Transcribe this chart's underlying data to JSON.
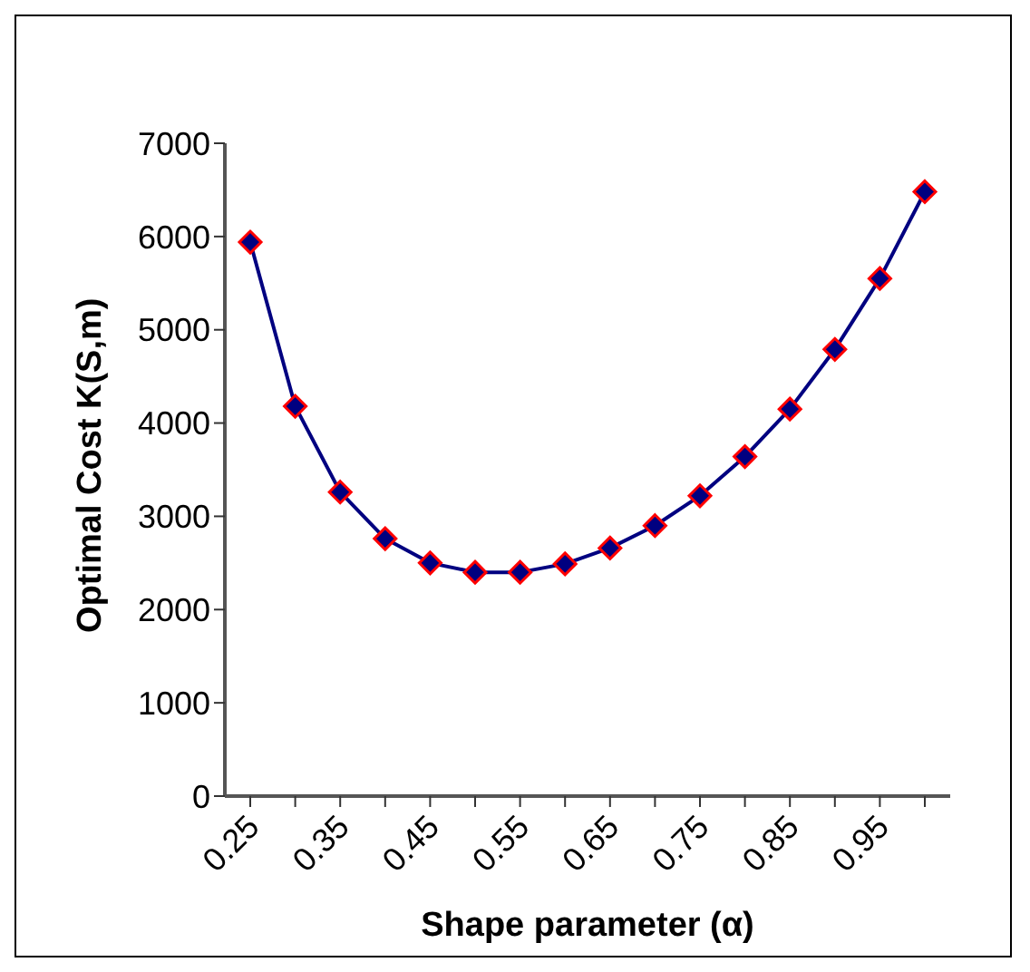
{
  "chart_data": {
    "type": "line",
    "xlabel": "Shape parameter (α)",
    "ylabel": "Optimal Cost K(S,m)",
    "categories": [
      "0.25",
      null,
      "0.35",
      null,
      "0.45",
      null,
      "0.55",
      null,
      "0.65",
      null,
      "0.75",
      null,
      "0.85",
      null,
      "0.95",
      null
    ],
    "series": [
      {
        "color": "#000080",
        "values": [
          5940,
          4180,
          3260,
          2760,
          2500,
          2400,
          2400,
          2490,
          2660,
          2900,
          3220,
          3640,
          4150,
          4790,
          5550,
          6480
        ]
      }
    ],
    "ylim": [
      0,
      7000
    ],
    "yticks": [
      0,
      1000,
      2000,
      3000,
      4000,
      5000,
      6000,
      7000
    ],
    "grid": false,
    "legend": false,
    "marker": "diamond",
    "line_style": "solid"
  }
}
